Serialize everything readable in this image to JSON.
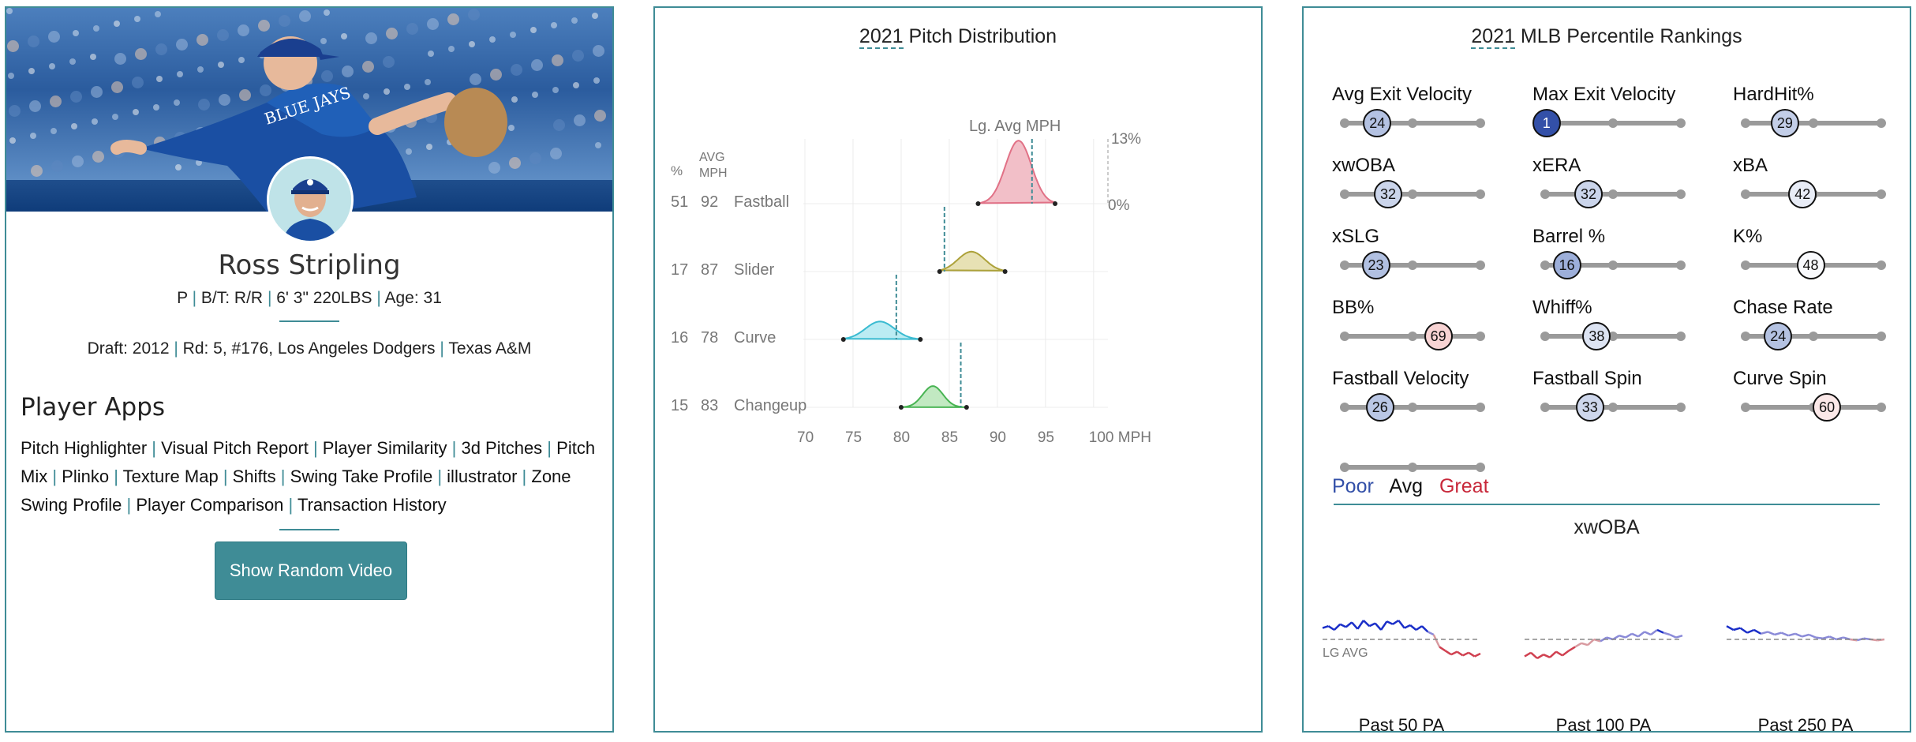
{
  "player": {
    "name": "Ross Stripling",
    "bio": {
      "position": "P",
      "bt": "B/T: R/R",
      "size": "6' 3\" 220LBS",
      "age": "Age: 31"
    },
    "draft": {
      "label": "Draft:",
      "year": "2012",
      "round": "Rd: 5, #176,",
      "team": "Los Angeles Dodgers",
      "school": "Texas A&M"
    },
    "apps_title": "Player Apps",
    "apps": [
      "Pitch Highlighter",
      "Visual Pitch Report",
      "Player Similarity",
      "3d Pitches",
      "Pitch Mix",
      "Plinko",
      "Texture Map",
      "Shifts",
      "Swing Take Profile",
      "illustrator",
      "Zone Swing Profile",
      "Player Comparison",
      "Transaction History"
    ],
    "button_label": "Show Random Video"
  },
  "pitch": {
    "title_year": "2021",
    "title_rest": " Pitch Distribution",
    "lg_avg_label": "Lg. Avg MPH",
    "pct_header": "%",
    "mph_header": [
      "AVG",
      "MPH"
    ],
    "pct_top": "13%",
    "pct_zero": "0%",
    "x_ticks": [
      "70",
      "75",
      "80",
      "85",
      "90",
      "95",
      "100 MPH"
    ],
    "pitches": [
      {
        "pct": "51",
        "mph": "92",
        "name": "Fastball",
        "color": "#e06a80",
        "fill": "#f2bcc6",
        "mean": 92.2,
        "sd": 1.35,
        "height": 0.95,
        "lg": 93.6,
        "min": 88.0,
        "max": 96.0
      },
      {
        "pct": "17",
        "mph": "87",
        "name": "Slider",
        "color": "#a89d2f",
        "fill": "#e6e0b0",
        "mean": 87.3,
        "sd": 1.4,
        "height": 0.3,
        "lg": 84.5,
        "min": 84.0,
        "max": 90.8
      },
      {
        "pct": "16",
        "mph": "78",
        "name": "Curve",
        "color": "#30b8cf",
        "fill": "#b8ecf3",
        "mean": 77.8,
        "sd": 1.5,
        "height": 0.27,
        "lg": 79.5,
        "min": 74.0,
        "max": 82.0
      },
      {
        "pct": "15",
        "mph": "83",
        "name": "Changeup",
        "color": "#3fb04a",
        "fill": "#bfe8bf",
        "mean": 83.3,
        "sd": 1.05,
        "height": 0.32,
        "lg": 86.2,
        "min": 80.0,
        "max": 86.8
      }
    ]
  },
  "percentile": {
    "title_year": "2021",
    "title_rest": " MLB Percentile Rankings",
    "metrics": [
      {
        "label": "Avg Exit Velocity",
        "value": 24
      },
      {
        "label": "Max Exit Velocity",
        "value": 1
      },
      {
        "label": "HardHit%",
        "value": 29
      },
      {
        "label": "xwOBA",
        "value": 32
      },
      {
        "label": "xERA",
        "value": 32
      },
      {
        "label": "xBA",
        "value": 42
      },
      {
        "label": "xSLG",
        "value": 23
      },
      {
        "label": "Barrel %",
        "value": 16
      },
      {
        "label": "K%",
        "value": 48
      },
      {
        "label": "BB%",
        "value": 69
      },
      {
        "label": "Whiff%",
        "value": 38
      },
      {
        "label": "Chase Rate",
        "value": 24
      },
      {
        "label": "Fastball Velocity",
        "value": 26
      },
      {
        "label": "Fastball Spin",
        "value": 33
      },
      {
        "label": "Curve Spin",
        "value": 60
      }
    ],
    "legend": {
      "poor": "Poor",
      "avg": "Avg",
      "great": "Great"
    },
    "colors": {
      "poor": "#3350a8",
      "great": "#c8283a"
    },
    "xwoba_title": "xwOBA",
    "lg_avg": "LG AVG",
    "sparks": [
      {
        "label": "Past 50 PA",
        "values": [
          0.62,
          0.64,
          0.6,
          0.66,
          0.63,
          0.68,
          0.61,
          0.7,
          0.64,
          0.67,
          0.6,
          0.69,
          0.66,
          0.7,
          0.62,
          0.65,
          0.6,
          0.64,
          0.58,
          0.55,
          0.42,
          0.38,
          0.34,
          0.37,
          0.33,
          0.36,
          0.32,
          0.35
        ]
      },
      {
        "label": "Past 100 PA",
        "values": [
          0.32,
          0.36,
          0.3,
          0.34,
          0.31,
          0.37,
          0.33,
          0.38,
          0.42,
          0.46,
          0.44,
          0.5,
          0.48,
          0.52,
          0.5,
          0.54,
          0.52,
          0.56,
          0.53,
          0.58,
          0.55,
          0.6,
          0.57,
          0.55,
          0.52,
          0.54
        ]
      },
      {
        "label": "Past 250 PA",
        "values": [
          0.64,
          0.6,
          0.62,
          0.57,
          0.6,
          0.56,
          0.58,
          0.55,
          0.57,
          0.54,
          0.56,
          0.53,
          0.55,
          0.52,
          0.51,
          0.53,
          0.5,
          0.52,
          0.5,
          0.49,
          0.51,
          0.5,
          0.49,
          0.5
        ]
      }
    ]
  }
}
